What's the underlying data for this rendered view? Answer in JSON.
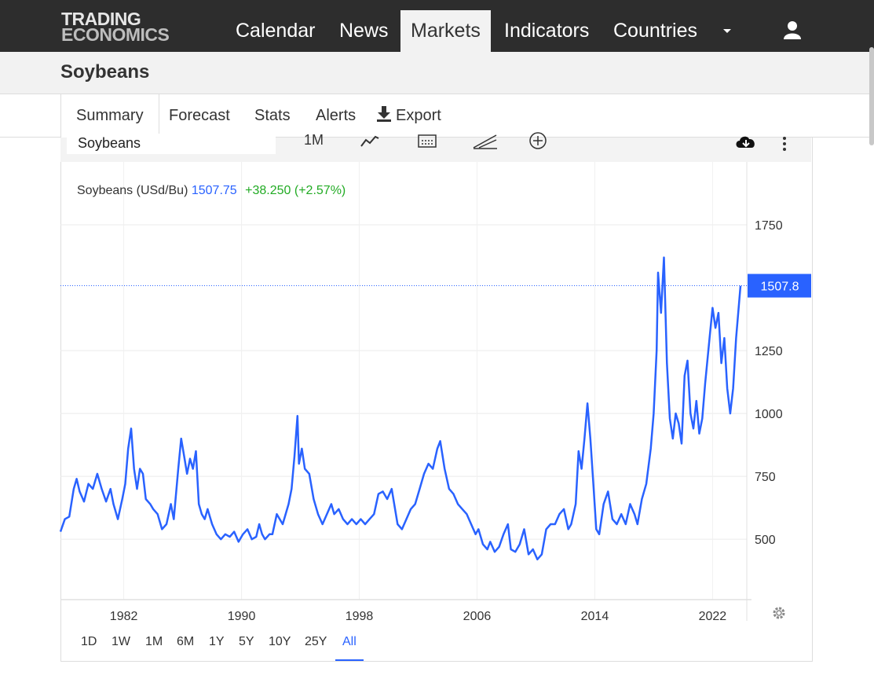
{
  "nav": {
    "logo_line1": "TRADING",
    "logo_line2": "ECONOMICS",
    "items": [
      {
        "label": "Calendar"
      },
      {
        "label": "News"
      },
      {
        "label": "Markets"
      },
      {
        "label": "Indicators"
      },
      {
        "label": "Countries"
      }
    ],
    "active": "Markets"
  },
  "page": {
    "title": "Soybeans"
  },
  "tabs": [
    {
      "label": "Summary"
    },
    {
      "label": "Forecast"
    },
    {
      "label": "Stats"
    },
    {
      "label": "Alerts"
    },
    {
      "label": "Export"
    }
  ],
  "toolbar": {
    "symbol": "Soybeans",
    "interval": "1M"
  },
  "legend": {
    "name": "Soybeans (USd/Bu)",
    "price": "1507.75",
    "change": "+38.250 (+2.57%)"
  },
  "colors": {
    "line": "#2962ff",
    "up": "#22ab24",
    "nav_bg": "#2d2d2d"
  },
  "ranges": [
    {
      "label": "1D"
    },
    {
      "label": "1W"
    },
    {
      "label": "1M"
    },
    {
      "label": "6M"
    },
    {
      "label": "1Y"
    },
    {
      "label": "5Y"
    },
    {
      "label": "10Y"
    },
    {
      "label": "25Y"
    },
    {
      "label": "All"
    }
  ],
  "active_range": "All",
  "chart_data": {
    "type": "line",
    "title": "",
    "series": [
      {
        "name": "Soybeans (USd/Bu)"
      }
    ],
    "x_ticks": [
      1982,
      1990,
      1998,
      2006,
      2014,
      2022
    ],
    "y_ticks": [
      500,
      750,
      1000,
      1250,
      1750
    ],
    "xlim": [
      1977.7,
      2023.9
    ],
    "ylim": [
      260,
      2000
    ],
    "last_value": 1507.8,
    "last_label": "1507.8",
    "grid": true,
    "points": [
      [
        1977.7,
        530
      ],
      [
        1978.0,
        580
      ],
      [
        1978.3,
        590
      ],
      [
        1978.6,
        700
      ],
      [
        1978.8,
        740
      ],
      [
        1979.0,
        690
      ],
      [
        1979.3,
        650
      ],
      [
        1979.6,
        720
      ],
      [
        1979.9,
        700
      ],
      [
        1980.2,
        760
      ],
      [
        1980.5,
        700
      ],
      [
        1980.8,
        650
      ],
      [
        1981.1,
        700
      ],
      [
        1981.3,
        640
      ],
      [
        1981.6,
        580
      ],
      [
        1981.9,
        660
      ],
      [
        1982.1,
        720
      ],
      [
        1982.3,
        860
      ],
      [
        1982.5,
        940
      ],
      [
        1982.7,
        780
      ],
      [
        1982.9,
        700
      ],
      [
        1983.1,
        780
      ],
      [
        1983.3,
        760
      ],
      [
        1983.5,
        660
      ],
      [
        1983.8,
        640
      ],
      [
        1984.0,
        620
      ],
      [
        1984.3,
        600
      ],
      [
        1984.6,
        540
      ],
      [
        1984.9,
        560
      ],
      [
        1985.2,
        640
      ],
      [
        1985.4,
        580
      ],
      [
        1985.7,
        780
      ],
      [
        1985.9,
        900
      ],
      [
        1986.1,
        830
      ],
      [
        1986.3,
        760
      ],
      [
        1986.5,
        820
      ],
      [
        1986.7,
        780
      ],
      [
        1986.9,
        850
      ],
      [
        1987.1,
        640
      ],
      [
        1987.3,
        600
      ],
      [
        1987.5,
        580
      ],
      [
        1987.7,
        620
      ],
      [
        1988.0,
        560
      ],
      [
        1988.3,
        520
      ],
      [
        1988.6,
        500
      ],
      [
        1988.9,
        520
      ],
      [
        1989.2,
        510
      ],
      [
        1989.5,
        530
      ],
      [
        1989.8,
        490
      ],
      [
        1990.1,
        520
      ],
      [
        1990.4,
        540
      ],
      [
        1990.7,
        500
      ],
      [
        1991.0,
        510
      ],
      [
        1991.2,
        560
      ],
      [
        1991.4,
        520
      ],
      [
        1991.6,
        500
      ],
      [
        1991.9,
        520
      ],
      [
        1992.1,
        520
      ],
      [
        1992.4,
        600
      ],
      [
        1992.8,
        560
      ],
      [
        1993.2,
        640
      ],
      [
        1993.4,
        700
      ],
      [
        1993.6,
        830
      ],
      [
        1993.8,
        990
      ],
      [
        1993.9,
        800
      ],
      [
        1994.1,
        860
      ],
      [
        1994.3,
        780
      ],
      [
        1994.6,
        760
      ],
      [
        1994.9,
        660
      ],
      [
        1995.2,
        600
      ],
      [
        1995.5,
        560
      ],
      [
        1995.8,
        600
      ],
      [
        1996.1,
        640
      ],
      [
        1996.3,
        600
      ],
      [
        1996.6,
        620
      ],
      [
        1996.9,
        580
      ],
      [
        1997.2,
        560
      ],
      [
        1997.5,
        580
      ],
      [
        1997.8,
        560
      ],
      [
        1998.1,
        580
      ],
      [
        1998.4,
        560
      ],
      [
        1998.7,
        580
      ],
      [
        1999.0,
        600
      ],
      [
        1999.3,
        680
      ],
      [
        1999.6,
        690
      ],
      [
        1999.9,
        660
      ],
      [
        2000.2,
        700
      ],
      [
        2000.6,
        560
      ],
      [
        2000.9,
        540
      ],
      [
        2001.2,
        580
      ],
      [
        2001.5,
        620
      ],
      [
        2001.8,
        640
      ],
      [
        2002.1,
        700
      ],
      [
        2002.4,
        760
      ],
      [
        2002.7,
        800
      ],
      [
        2003.0,
        780
      ],
      [
        2003.3,
        860
      ],
      [
        2003.5,
        890
      ],
      [
        2003.8,
        780
      ],
      [
        2004.1,
        700
      ],
      [
        2004.4,
        680
      ],
      [
        2004.7,
        640
      ],
      [
        2005.0,
        620
      ],
      [
        2005.3,
        600
      ],
      [
        2005.6,
        560
      ],
      [
        2005.9,
        520
      ],
      [
        2006.1,
        540
      ],
      [
        2006.4,
        480
      ],
      [
        2006.7,
        460
      ],
      [
        2006.9,
        490
      ],
      [
        2007.2,
        450
      ],
      [
        2007.5,
        470
      ],
      [
        2007.8,
        520
      ],
      [
        2008.1,
        560
      ],
      [
        2008.3,
        460
      ],
      [
        2008.6,
        450
      ],
      [
        2008.9,
        480
      ],
      [
        2009.2,
        540
      ],
      [
        2009.5,
        440
      ],
      [
        2009.8,
        460
      ],
      [
        2010.1,
        420
      ],
      [
        2010.4,
        440
      ],
      [
        2010.7,
        540
      ],
      [
        2011.0,
        560
      ],
      [
        2011.3,
        560
      ],
      [
        2011.6,
        600
      ],
      [
        2011.9,
        620
      ],
      [
        2012.2,
        540
      ],
      [
        2012.4,
        560
      ],
      [
        2012.7,
        640
      ],
      [
        2012.9,
        850
      ],
      [
        2013.1,
        780
      ],
      [
        2013.3,
        900
      ],
      [
        2013.5,
        1040
      ],
      [
        2013.7,
        900
      ],
      [
        2013.9,
        720
      ],
      [
        2014.1,
        540
      ],
      [
        2014.3,
        520
      ],
      [
        2014.6,
        640
      ],
      [
        2014.9,
        690
      ],
      [
        2015.2,
        580
      ],
      [
        2015.5,
        560
      ],
      [
        2015.8,
        600
      ],
      [
        2016.1,
        560
      ],
      [
        2016.4,
        640
      ],
      [
        2016.7,
        600
      ],
      [
        2016.9,
        560
      ],
      [
        2017.2,
        660
      ],
      [
        2017.5,
        720
      ],
      [
        2017.8,
        860
      ],
      [
        2018.0,
        1000
      ],
      [
        2018.2,
        1250
      ],
      [
        2018.3,
        1560
      ],
      [
        2018.5,
        1400
      ],
      [
        2018.7,
        1620
      ],
      [
        2018.9,
        1200
      ],
      [
        2019.1,
        980
      ],
      [
        2019.3,
        900
      ],
      [
        2019.5,
        1000
      ],
      [
        2019.7,
        960
      ],
      [
        2019.9,
        880
      ],
      [
        2020.1,
        1150
      ],
      [
        2020.3,
        1210
      ],
      [
        2020.5,
        1000
      ],
      [
        2020.7,
        940
      ],
      [
        2020.9,
        1050
      ],
      [
        2021.1,
        920
      ],
      [
        2021.3,
        980
      ],
      [
        2021.5,
        1120
      ],
      [
        2021.8,
        1300
      ],
      [
        2022.0,
        1420
      ],
      [
        2022.2,
        1340
      ],
      [
        2022.4,
        1400
      ],
      [
        2022.6,
        1200
      ],
      [
        2022.8,
        1300
      ],
      [
        2023.0,
        1100
      ],
      [
        2023.2,
        1000
      ],
      [
        2023.4,
        1100
      ],
      [
        2023.6,
        1300
      ],
      [
        2023.9,
        1507.8
      ]
    ]
  }
}
